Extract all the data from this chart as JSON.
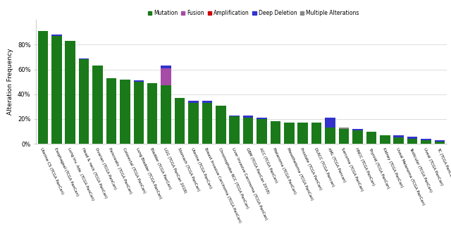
{
  "categories": [
    "Uterine CS (TCGA PanCan)",
    "Esophageal (TCGA PanCan)",
    "Lung Inv. Ade. (TCGA PanCan)",
    "Head & neck (TCGA PanCan)",
    "Ovarian (TCGA PanCan)",
    "Pancreatic (TCGA PanCan)",
    "Colorectal (TCGA PanCan)",
    "Lung Bladder (TCGA PanCan)",
    "Bladder (TCGA PanCan)",
    "LGG (TCGA PanCan 2018)",
    "Stomach (TCGA PanCan)",
    "Uterine (TCGA PanCan)",
    "Breast Invasive Carcinoma (TCGA PanCan)",
    "Chromophobe RCC (TCGA PanCan)",
    "Liver Invasive Carcinoma (TCGA PanCan)",
    "GBM (TCGA PanCan 2018)",
    "ACC (TCGA PanCan)",
    "Melanoma (TCGA PanCan)",
    "Mesothelioma (TCGA PanCan)",
    "Prostate (TCGA PanCan)",
    "DLRCC (TCGA Pancan)",
    "AML (TCGA Pancan)",
    "Sarcoma (TCGA PanCan)",
    "HNCC (TCGA PanCan)",
    "Thyroid (TCGA PanCan)",
    "Kidney (TCGA PanCan)",
    "Uveal Melanoma (TCGA PanCan)",
    "Testicular (TCGA PanCan)",
    "Uveal (TCGA PanCan)",
    "TC (TCGA PanCan)"
  ],
  "mutation": [
    91,
    87,
    83,
    68,
    63,
    53,
    52,
    50,
    49,
    47,
    37,
    33,
    33,
    31,
    22,
    21,
    20,
    18,
    17,
    17,
    17,
    13,
    12,
    11,
    10,
    7,
    5,
    4,
    3,
    2
  ],
  "fusion": [
    0,
    0,
    0,
    0,
    0,
    0,
    0,
    0,
    0,
    14,
    0,
    0,
    0,
    0,
    0,
    0,
    0,
    0,
    0,
    0,
    0,
    0,
    0,
    0,
    0,
    0,
    0,
    0,
    0,
    0
  ],
  "amplification": [
    0,
    0,
    0,
    0,
    0,
    0,
    0,
    0,
    0,
    0,
    0,
    0,
    0,
    0,
    0,
    0,
    0,
    0,
    0,
    0,
    0,
    0,
    0,
    0,
    0,
    0,
    0,
    0,
    0,
    0
  ],
  "deep_deletion": [
    0,
    1,
    0,
    1,
    0,
    0,
    0,
    1,
    0,
    2,
    0,
    2,
    2,
    0,
    1,
    2,
    1,
    0,
    0,
    0,
    0,
    8,
    0,
    1,
    0,
    0,
    2,
    2,
    1,
    1
  ],
  "multiple_alterations": [
    0,
    0,
    0,
    0,
    0,
    0,
    0,
    0,
    0,
    0,
    0,
    0,
    0,
    0,
    0,
    0,
    0,
    0,
    0,
    0,
    0,
    0,
    1,
    0,
    0,
    0,
    0,
    0,
    0,
    0
  ],
  "mutation_color": "#1a7a1a",
  "fusion_color": "#a64ca6",
  "amplification_color": "#cc0000",
  "deep_deletion_color": "#3333cc",
  "multiple_alterations_color": "#888888",
  "ylabel": "Alteration Frequency",
  "yticks": [
    0,
    20,
    40,
    60,
    80
  ],
  "ytick_labels": [
    "0%",
    "20%",
    "40%",
    "60%",
    "80%"
  ],
  "legend_labels": [
    "Mutation",
    "Fusion",
    "Amplification",
    "Deep Deletion",
    "Multiple Alterations"
  ],
  "background_color": "#ffffff",
  "grid_color": "#d0d0d0"
}
